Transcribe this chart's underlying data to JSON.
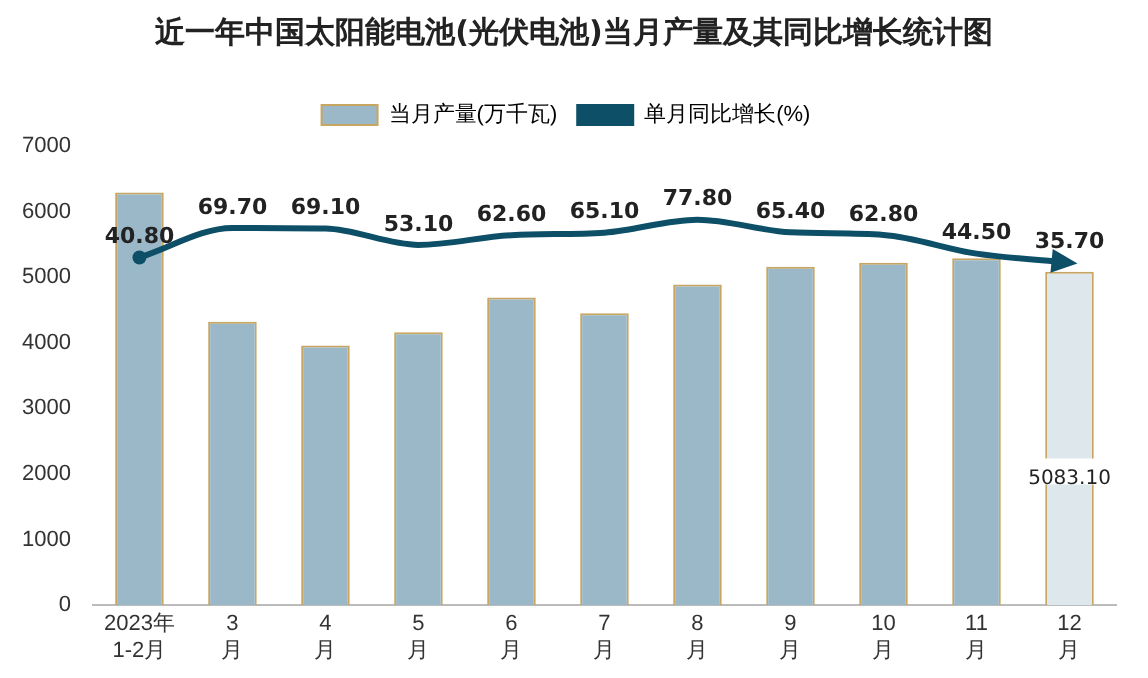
{
  "chart_data": {
    "type": "bar",
    "title": "近一年中国太阳能电池(光伏电池)当月产量及其同比增长统计图",
    "categories": [
      "2023年1-2月",
      "3月",
      "4月",
      "5月",
      "6月",
      "7月",
      "8月",
      "9月",
      "10月",
      "11月",
      "12月"
    ],
    "series": [
      {
        "name": "当月产量(万千瓦)",
        "type": "bar",
        "colors": [
          "#9ab8c8",
          "#9ab8c8",
          "#9ab8c8",
          "#9ab8c8",
          "#9ab8c8",
          "#9ab8c8",
          "#9ab8c8",
          "#9ab8c8",
          "#9ab8c8",
          "#9ab8c8",
          "#dde7ec"
        ],
        "values": [
          6290,
          4320,
          3960,
          4160,
          4690,
          4450,
          4890,
          5160,
          5220,
          5290,
          5083.1
        ],
        "value_labels": [
          null,
          null,
          null,
          null,
          null,
          null,
          null,
          null,
          null,
          null,
          "5083.10"
        ]
      },
      {
        "name": "单月同比增长(%)",
        "type": "line",
        "axis": "y2",
        "color": "#0e4f68",
        "values": [
          40.8,
          69.7,
          69.1,
          53.1,
          62.6,
          65.1,
          77.8,
          65.4,
          62.8,
          44.5,
          35.7
        ],
        "value_labels": [
          "40.80",
          "69.70",
          "69.10",
          "53.10",
          "62.60",
          "65.10",
          "77.80",
          "65.40",
          "62.80",
          "44.50",
          "35.70"
        ]
      }
    ],
    "ylim": [
      0,
      7000
    ],
    "yticks": [
      0,
      1000,
      2000,
      3000,
      4000,
      5000,
      6000,
      7000
    ],
    "tick_labels": "xy",
    "grid": false,
    "legend": "top",
    "marker": "none"
  }
}
